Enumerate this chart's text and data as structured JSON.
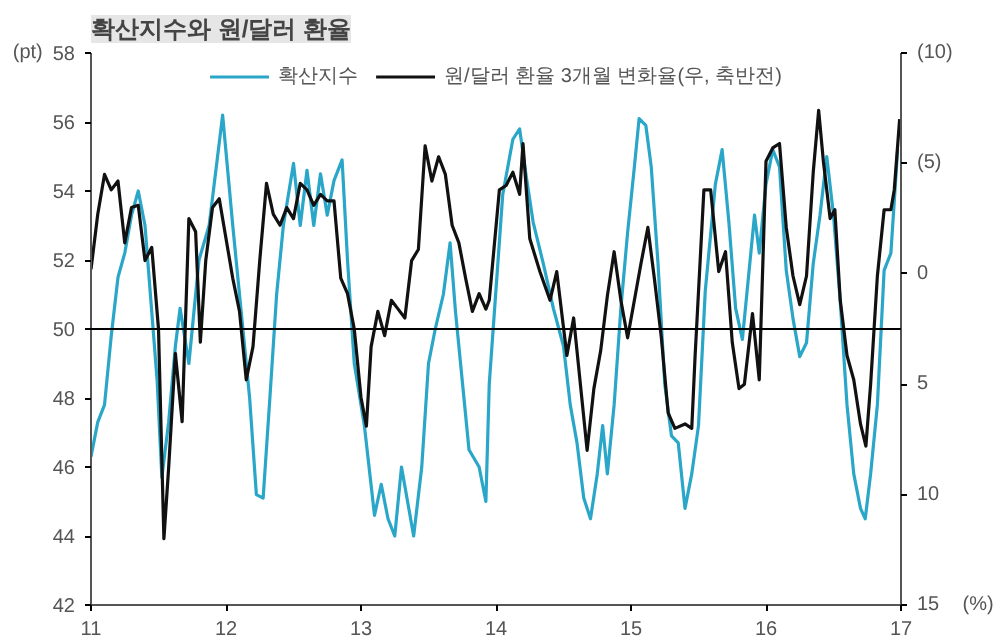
{
  "chart_data": {
    "type": "line",
    "title": "확산지수와 원/달러 환율",
    "ylabel": "(pt)",
    "y2label": "(%)",
    "xlim": [
      11,
      17
    ],
    "xticks": [
      11,
      12,
      13,
      14,
      15,
      16,
      17
    ],
    "ylim": [
      42,
      58
    ],
    "yticks": [
      42,
      44,
      46,
      48,
      50,
      52,
      54,
      56,
      58
    ],
    "y2lim": [
      15,
      -10
    ],
    "y2ticks": [
      {
        "value": -10,
        "label": "(10)"
      },
      {
        "value": -5,
        "label": "(5)"
      },
      0,
      5,
      10,
      15
    ],
    "grid": false,
    "legend": "top",
    "marker": "none",
    "line_style": "solid",
    "ref_lines": [
      {
        "axis": "y",
        "value": 50,
        "color": "#000000"
      }
    ],
    "series": [
      {
        "name": "확산지수",
        "color": "#2aa6c8",
        "x": [
          11.0,
          11.05,
          11.1,
          11.15,
          11.2,
          11.25,
          11.3,
          11.35,
          11.4,
          11.45,
          11.49,
          11.525,
          11.575,
          11.625,
          11.66,
          11.725,
          11.8,
          11.875,
          11.975,
          12.05,
          12.125,
          12.175,
          12.225,
          12.275,
          12.325,
          12.375,
          12.425,
          12.5,
          12.55,
          12.6,
          12.65,
          12.7,
          12.75,
          12.8,
          12.86,
          12.9,
          12.95,
          13.025,
          13.1,
          13.15,
          13.2,
          13.25,
          13.3,
          13.39,
          13.45,
          13.5,
          13.55,
          13.61,
          13.66,
          13.7,
          13.75,
          13.8,
          13.875,
          13.925,
          13.95,
          14.05,
          14.125,
          14.175,
          14.225,
          14.275,
          14.35,
          14.425,
          14.5,
          14.55,
          14.6,
          14.65,
          14.7,
          14.75,
          14.79,
          14.825,
          14.875,
          14.925,
          14.975,
          15.025,
          15.06,
          15.11,
          15.15,
          15.2,
          15.25,
          15.3,
          15.35,
          15.4,
          15.45,
          15.5,
          15.55,
          15.625,
          15.675,
          15.725,
          15.775,
          15.825,
          15.875,
          15.915,
          15.95,
          16.0,
          16.05,
          16.1,
          16.15,
          16.2,
          16.25,
          16.3,
          16.35,
          16.4,
          16.45,
          16.5,
          16.55,
          16.6,
          16.65,
          16.7,
          16.735,
          16.775,
          16.825,
          16.875,
          16.925,
          16.975
        ],
        "values": [
          46.3,
          47.3,
          47.8,
          49.8,
          51.5,
          52.2,
          53.3,
          54.0,
          53.0,
          50.5,
          48.5,
          45.7,
          47.3,
          49.5,
          50.6,
          49.0,
          52.0,
          53.0,
          56.2,
          53.0,
          50.0,
          48.0,
          45.2,
          45.1,
          48.0,
          51.0,
          53.0,
          54.8,
          53.0,
          54.6,
          53.0,
          54.5,
          53.3,
          54.3,
          54.9,
          52.0,
          49.0,
          47.2,
          44.6,
          45.5,
          44.5,
          44.0,
          46.0,
          44.0,
          46.0,
          49.0,
          50.0,
          51.0,
          52.5,
          50.5,
          48.5,
          46.5,
          46.0,
          45.0,
          48.4,
          53.9,
          55.5,
          55.8,
          54.4,
          53.1,
          51.9,
          50.6,
          49.5,
          47.8,
          46.7,
          45.1,
          44.5,
          45.8,
          47.2,
          45.8,
          47.8,
          50.6,
          52.8,
          54.7,
          56.1,
          55.9,
          54.7,
          51.9,
          48.4,
          46.9,
          46.7,
          44.8,
          45.8,
          47.2,
          51.1,
          54.2,
          55.2,
          53.1,
          50.6,
          49.7,
          51.7,
          53.3,
          52.2,
          54.2,
          55.2,
          54.7,
          51.7,
          50.3,
          49.2,
          49.6,
          51.9,
          53.3,
          55.0,
          53.3,
          50.8,
          47.8,
          45.8,
          44.8,
          44.5,
          45.8,
          47.8,
          51.7,
          52.2,
          55.2
        ]
      },
      {
        "name": "원/달러 환율 3개월 변화율(우, 축반전)",
        "color": "#111111",
        "axis": "y2",
        "x": [
          11.0,
          11.05,
          11.1,
          11.15,
          11.2,
          11.25,
          11.3,
          11.35,
          11.4,
          11.45,
          11.5,
          11.54,
          11.575,
          11.625,
          11.675,
          11.725,
          11.775,
          11.81,
          11.85,
          11.9,
          11.95,
          12.0,
          12.05,
          12.1,
          12.15,
          12.2,
          12.25,
          12.3,
          12.35,
          12.4,
          12.45,
          12.5,
          12.55,
          12.6,
          12.65,
          12.7,
          12.75,
          12.8,
          12.85,
          12.9,
          12.95,
          13.0,
          13.04,
          13.075,
          13.125,
          13.175,
          13.225,
          13.275,
          13.325,
          13.375,
          13.425,
          13.475,
          13.525,
          13.575,
          13.625,
          13.675,
          13.725,
          13.775,
          13.825,
          13.875,
          13.925,
          13.95,
          14.025,
          14.075,
          14.125,
          14.175,
          14.2,
          14.25,
          14.325,
          14.4,
          14.45,
          14.525,
          14.575,
          14.625,
          14.675,
          14.725,
          14.775,
          14.825,
          14.875,
          14.925,
          14.975,
          15.025,
          15.075,
          15.125,
          15.175,
          15.225,
          15.275,
          15.325,
          15.4,
          15.45,
          15.475,
          15.54,
          15.59,
          15.65,
          15.7,
          15.75,
          15.8,
          15.84,
          15.9,
          15.95,
          16.0,
          16.05,
          16.1,
          16.15,
          16.2,
          16.25,
          16.3,
          16.35,
          16.39,
          16.425,
          16.475,
          16.51,
          16.55,
          16.6,
          16.65,
          16.7,
          16.74,
          16.775,
          16.825,
          16.875,
          16.925,
          16.95,
          16.99
        ],
        "values": [
          -0.2,
          -2.7,
          -4.5,
          -3.8,
          -4.2,
          -1.4,
          -3.0,
          -3.1,
          -0.6,
          -1.2,
          2.5,
          12.0,
          8.8,
          3.6,
          6.7,
          -2.5,
          -1.9,
          3.1,
          -0.6,
          -3.0,
          -3.4,
          -1.6,
          0.2,
          1.7,
          4.8,
          3.3,
          -0.6,
          -4.1,
          -2.7,
          -2.2,
          -3.0,
          -2.5,
          -4.1,
          -3.8,
          -3.1,
          -3.6,
          -3.3,
          -3.3,
          0.2,
          0.9,
          2.5,
          5.6,
          6.9,
          3.3,
          1.7,
          2.8,
          1.2,
          1.6,
          2.0,
          -0.6,
          -1.1,
          -5.8,
          -4.2,
          -5.3,
          -4.5,
          -2.2,
          -1.4,
          0.2,
          1.7,
          0.9,
          1.6,
          1.2,
          -3.8,
          -4.0,
          -4.6,
          -3.6,
          -5.9,
          -1.6,
          -0.1,
          1.2,
          -0.1,
          3.7,
          2.0,
          5.0,
          8.0,
          5.2,
          3.5,
          1.0,
          -1.0,
          1.2,
          2.9,
          1.2,
          -0.5,
          -2.1,
          0.3,
          2.9,
          6.3,
          7.0,
          6.8,
          7.0,
          3.7,
          -3.8,
          -3.8,
          -0.1,
          -1.0,
          3.1,
          5.2,
          5.0,
          1.8,
          4.8,
          -5.1,
          -5.7,
          -5.9,
          -2.1,
          0.1,
          1.4,
          0.1,
          -4.6,
          -7.4,
          -5.1,
          -2.5,
          -2.9,
          1.2,
          3.7,
          4.8,
          6.8,
          7.8,
          5.0,
          0.1,
          -2.9,
          -2.9,
          -3.8,
          -7.0
        ]
      }
    ]
  }
}
